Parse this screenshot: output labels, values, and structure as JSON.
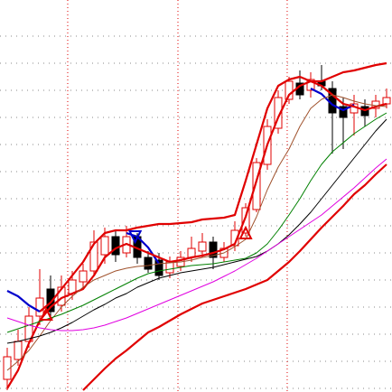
{
  "chart_data": {
    "type": "candlestick",
    "xlim": [
      -0.667,
      35.5
    ],
    "ylim": [
      0,
      434
    ],
    "xticks": [
      5.58,
      15.75,
      25.83
    ],
    "yticks": [
      4,
      34,
      64,
      94,
      124,
      154,
      184,
      214,
      244,
      274,
      304,
      334,
      364,
      394
    ],
    "grid": true,
    "x": [
      0,
      1,
      2,
      3,
      4,
      5,
      6,
      7,
      8,
      9,
      10,
      11,
      12,
      13,
      14,
      15,
      16,
      17,
      18,
      19,
      20,
      21,
      22,
      23,
      24,
      25,
      26,
      27,
      28,
      29,
      30,
      31,
      32,
      33,
      34,
      35
    ],
    "up_color": "#e00000",
    "down_color": "#000000",
    "open": [
      14,
      36,
      56,
      84,
      114,
      96,
      109,
      122,
      134,
      152,
      172,
      154,
      172,
      149,
      146,
      132,
      139,
      149,
      156,
      166,
      149,
      162,
      176,
      202,
      252,
      292,
      324,
      342,
      334,
      344,
      336,
      316,
      309,
      316,
      314,
      319
    ],
    "high": [
      49,
      69,
      94,
      136,
      129,
      129,
      134,
      142,
      179,
      182,
      179,
      184,
      176,
      156,
      154,
      150,
      156,
      172,
      176,
      172,
      166,
      189,
      209,
      259,
      302,
      334,
      349,
      356,
      354,
      362,
      344,
      326,
      329,
      324,
      329,
      336
    ],
    "low": [
      2,
      29,
      49,
      74,
      82,
      89,
      102,
      116,
      129,
      142,
      144,
      149,
      142,
      132,
      124,
      126,
      134,
      144,
      149,
      136,
      144,
      156,
      172,
      199,
      246,
      286,
      319,
      324,
      326,
      334,
      264,
      269,
      284,
      294,
      304,
      314
    ],
    "close": [
      39,
      56,
      84,
      104,
      89,
      116,
      124,
      134,
      166,
      172,
      152,
      172,
      149,
      136,
      129,
      144,
      149,
      159,
      166,
      149,
      159,
      179,
      204,
      254,
      294,
      326,
      344,
      329,
      346,
      339,
      309,
      304,
      319,
      306,
      322,
      326
    ],
    "series": [
      {
        "color": "#e00000",
        "thick": true,
        "values": [
          null,
          null,
          null,
          89,
          99,
          114,
          129,
          144,
          164,
          176,
          179,
          179,
          182,
          184,
          186,
          186,
          187,
          188,
          191,
          192,
          193,
          196,
          234,
          274,
          314,
          339,
          346,
          349,
          344,
          344,
          349,
          354,
          356,
          359,
          362,
          364
        ]
      },
      {
        "color": "#0000cc",
        "thick": true,
        "values": [
          112,
          106,
          96,
          89,
          null,
          null,
          null,
          null,
          null,
          null,
          null,
          176,
          172,
          160,
          142,
          null,
          null,
          null,
          null,
          null,
          null,
          null,
          null,
          null,
          null,
          null,
          null,
          null,
          336,
          330,
          318,
          312,
          318,
          null,
          null,
          null
        ]
      },
      {
        "color": "#e00000",
        "thick": true,
        "values": [
          4,
          24,
          54,
          79,
          94,
          104,
          109,
          114,
          129,
          149,
          159,
          164,
          159,
          154,
          149,
          144,
          146,
          149,
          151,
          154,
          158,
          164,
          194,
          234,
          274,
          304,
          329,
          339,
          344,
          339,
          329,
          319,
          316,
          312,
          316,
          319
        ]
      },
      {
        "color": "#a0522d",
        "thick": false,
        "values": [
          24,
          34,
          46,
          62,
          79,
          94,
          106,
          116,
          124,
          129,
          134,
          137,
          139,
          140,
          142,
          143,
          144,
          146,
          149,
          151,
          154,
          161,
          169,
          194,
          224,
          249,
          269,
          294,
          314,
          324,
          329,
          326,
          322,
          319,
          317,
          316
        ]
      },
      {
        "color": "#008000",
        "thick": false,
        "values": [
          66,
          70,
          74,
          78,
          82,
          86,
          91,
          96,
          102,
          108,
          114,
          120,
          126,
          131,
          134,
          136,
          138,
          140,
          141,
          142,
          144,
          146,
          148,
          154,
          164,
          179,
          196,
          214,
          234,
          252,
          266,
          276,
          286,
          294,
          302,
          309
        ]
      },
      {
        "color": "#000000",
        "thick": false,
        "values": [
          54,
          56,
          59,
          62,
          66,
          71,
          77,
          84,
          91,
          97,
          104,
          109,
          116,
          121,
          126,
          129,
          132,
          134,
          136,
          138,
          141,
          144,
          147,
          150,
          156,
          164,
          174,
          186,
          199,
          214,
          229,
          244,
          259,
          274,
          289,
          302
        ]
      },
      {
        "color": "#e000e0",
        "thick": false,
        "values": [
          82,
          78,
          74,
          71,
          69,
          68,
          68,
          69,
          71,
          74,
          78,
          82,
          87,
          92,
          97,
          102,
          107,
          112,
          117,
          122,
          128,
          134,
          141,
          148,
          156,
          164,
          172,
          180,
          188,
          196,
          206,
          216,
          226,
          237,
          248,
          258
        ]
      },
      {
        "color": "#e00000",
        "thick": true,
        "values": [
          null,
          null,
          null,
          null,
          null,
          null,
          null,
          2,
          14,
          26,
          37,
          46,
          56,
          66,
          72,
          79,
          86,
          92,
          98,
          102,
          106,
          110,
          114,
          119,
          124,
          134,
          144,
          156,
          169,
          182,
          194,
          206,
          219,
          229,
          241,
          252
        ]
      }
    ],
    "signals": [
      {
        "x": 3.6,
        "value": 86,
        "color": "#e00000",
        "up": true
      },
      {
        "x": 11.8,
        "value": 172,
        "color": "#0000cc",
        "up": false
      },
      {
        "x": 22.0,
        "value": 176,
        "color": "#e00000",
        "up": true
      }
    ]
  }
}
